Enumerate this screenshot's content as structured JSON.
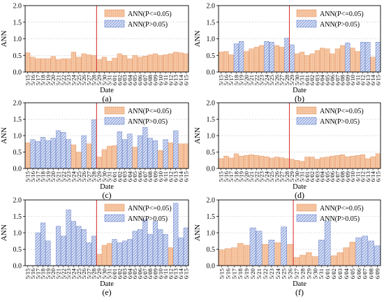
{
  "figure": {
    "colors": {
      "significant": "#f7c9a6",
      "significant_stroke": "#e08a55",
      "nonsignificant": "#cdd8f2",
      "nonsignificant_stroke": "#5570c0",
      "divider": "#d93a3a",
      "grid": "#bfbfbf"
    }
  },
  "chart_data": [
    {
      "type": "bar",
      "panel_label": "(a)",
      "xlabel": "Date",
      "ylabel": "ANN",
      "ylim": [
        0,
        2.0
      ],
      "yticks": [
        "0.0",
        "0.5",
        "1.0",
        "1.5",
        "2.0"
      ],
      "legend": [
        "ANN(P<=0.05)",
        "ANN(P>0.05)"
      ],
      "legend_position": "top-right",
      "divider_after": "5/28",
      "categories": [
        "5/15",
        "5/16",
        "5/17",
        "5/18",
        "5/19",
        "5/20",
        "5/21",
        "5/22",
        "5/23",
        "5/24",
        "5/25",
        "5/26",
        "5/27",
        "5/28",
        "5/29",
        "5/30",
        "5/31",
        "6/01",
        "6/02",
        "6/03",
        "6/04",
        "6/05",
        "6/06",
        "6/07",
        "6/08",
        "6/09",
        "6/10",
        "6/11",
        "6/12",
        "6/13",
        "6/14",
        "6/15"
      ],
      "values": [
        0.58,
        0.45,
        0.4,
        0.4,
        0.4,
        0.47,
        0.38,
        0.4,
        0.4,
        0.6,
        0.45,
        0.55,
        0.52,
        0.5,
        0.38,
        0.45,
        0.33,
        0.42,
        0.55,
        0.5,
        0.4,
        0.5,
        0.45,
        0.48,
        0.52,
        0.55,
        0.5,
        0.52,
        0.55,
        0.6,
        0.58,
        0.55
      ],
      "significant": [
        true,
        true,
        true,
        true,
        true,
        true,
        true,
        true,
        true,
        true,
        true,
        true,
        true,
        true,
        true,
        true,
        true,
        true,
        true,
        true,
        true,
        true,
        true,
        true,
        true,
        true,
        true,
        true,
        true,
        true,
        true,
        true
      ]
    },
    {
      "type": "bar",
      "panel_label": "(b)",
      "xlabel": "Date",
      "ylabel": "ANN",
      "ylim": [
        0,
        2.0
      ],
      "yticks": [
        "0.0",
        "0.5",
        "1.0",
        "1.5",
        "2.0"
      ],
      "legend": [
        "ANN(P<=0.05)",
        "ANN(P>0.05)"
      ],
      "legend_position": "top-right",
      "divider_after": "5/28",
      "categories": [
        "5/15",
        "5/16",
        "5/17",
        "5/18",
        "5/19",
        "5/20",
        "5/21",
        "5/22",
        "5/23",
        "5/24",
        "5/25",
        "5/26",
        "5/27",
        "5/28",
        "5/29",
        "5/30",
        "5/31",
        "6/01",
        "6/02",
        "6/03",
        "6/04",
        "6/05",
        "6/06",
        "6/07",
        "6/08",
        "6/09",
        "6/10",
        "6/11",
        "6/12",
        "6/13",
        "6/14",
        "6/15"
      ],
      "values": [
        0.6,
        0.62,
        0.52,
        0.85,
        0.92,
        0.62,
        0.7,
        0.75,
        0.8,
        0.92,
        0.9,
        0.8,
        0.75,
        1.02,
        0.82,
        0.55,
        0.6,
        0.5,
        0.55,
        0.65,
        0.72,
        0.7,
        0.55,
        0.7,
        0.8,
        0.88,
        0.72,
        0.62,
        0.9,
        0.9,
        0.45,
        0.9
      ],
      "significant": [
        true,
        true,
        true,
        false,
        false,
        true,
        true,
        true,
        true,
        false,
        false,
        true,
        true,
        false,
        false,
        true,
        true,
        true,
        true,
        true,
        true,
        true,
        true,
        true,
        true,
        false,
        true,
        true,
        false,
        false,
        true,
        false
      ]
    },
    {
      "type": "bar",
      "panel_label": "(c)",
      "xlabel": "Date",
      "ylabel": "ANN",
      "ylim": [
        0,
        2.0
      ],
      "yticks": [
        "0.0",
        "0.5",
        "1.0",
        "1.5",
        "2.0"
      ],
      "legend": [
        "ANN(P<=0.05)",
        "ANN(P>0.05)"
      ],
      "legend_position": "top-right",
      "divider_after": "5/28",
      "categories": [
        "5/15",
        "5/16",
        "5/17",
        "5/18",
        "5/19",
        "5/20",
        "5/21",
        "5/22",
        "5/23",
        "5/24",
        "5/25",
        "5/26",
        "5/27",
        "5/28",
        "5/29",
        "5/30",
        "5/31",
        "6/01",
        "6/02",
        "6/03",
        "6/04",
        "6/05",
        "6/06",
        "6/07",
        "6/08",
        "6/09",
        "6/10",
        "6/11",
        "6/12",
        "6/13",
        "6/14",
        "6/15"
      ],
      "values": [
        0.78,
        0.88,
        0.82,
        0.95,
        0.85,
        0.92,
        1.15,
        1.1,
        0.88,
        0.72,
        0.5,
        1.0,
        0.75,
        1.48,
        0.35,
        0.58,
        0.68,
        0.7,
        1.12,
        0.88,
        1.05,
        0.65,
        1.0,
        1.25,
        0.92,
        0.85,
        0.55,
        0.88,
        0.78,
        1.15,
        0.75,
        0.75
      ],
      "significant": [
        true,
        false,
        false,
        false,
        false,
        false,
        false,
        false,
        false,
        true,
        true,
        false,
        true,
        false,
        true,
        true,
        true,
        true,
        false,
        false,
        false,
        true,
        false,
        false,
        false,
        false,
        true,
        false,
        true,
        false,
        true,
        true
      ]
    },
    {
      "type": "bar",
      "panel_label": "(d)",
      "xlabel": "Date",
      "ylabel": "ANN",
      "ylim": [
        0,
        2.0
      ],
      "yticks": [
        "0.0",
        "0.5",
        "1.0",
        "1.5",
        "2.0"
      ],
      "legend": [
        "ANN(P<=0.05)",
        "ANN(P>0.05)"
      ],
      "legend_position": "top-right",
      "divider_after": "5/28",
      "categories": [
        "5/15",
        "5/16",
        "5/17",
        "5/18",
        "5/19",
        "5/20",
        "5/21",
        "5/22",
        "5/23",
        "5/24",
        "5/25",
        "5/26",
        "5/27",
        "5/28",
        "5/29",
        "5/30",
        "5/31",
        "6/01",
        "6/02",
        "6/03",
        "6/04",
        "6/05",
        "6/06",
        "6/07",
        "6/08",
        "6/09",
        "6/10",
        "6/11",
        "6/12",
        "6/13",
        "6/14",
        "6/15"
      ],
      "values": [
        0.3,
        0.38,
        0.32,
        0.45,
        0.38,
        0.4,
        0.42,
        0.4,
        0.38,
        0.36,
        0.32,
        0.35,
        0.33,
        0.3,
        0.28,
        0.25,
        0.22,
        0.35,
        0.35,
        0.28,
        0.33,
        0.35,
        0.38,
        0.4,
        0.42,
        0.36,
        0.38,
        0.4,
        0.42,
        0.3,
        0.36,
        0.45
      ],
      "significant": [
        true,
        true,
        true,
        true,
        true,
        true,
        true,
        true,
        true,
        true,
        true,
        true,
        true,
        true,
        true,
        true,
        true,
        true,
        true,
        true,
        true,
        true,
        true,
        true,
        true,
        true,
        true,
        true,
        true,
        true,
        true,
        true
      ]
    },
    {
      "type": "bar",
      "panel_label": "(e)",
      "xlabel": "Date",
      "ylabel": "ANN",
      "ylim": [
        0,
        2.0
      ],
      "yticks": [
        "0.0",
        "0.5",
        "1.0",
        "1.5",
        "2.0"
      ],
      "legend": [
        "ANN(P<=0.05)",
        "ANN(P>0.05)"
      ],
      "legend_position": "top-right",
      "divider_after": "5/28",
      "categories": [
        "5/15",
        "5/16",
        "5/17",
        "5/18",
        "5/19",
        "5/20",
        "5/21",
        "5/22",
        "5/23",
        "5/24",
        "5/25",
        "5/26",
        "5/27",
        "5/28",
        "5/29",
        "5/30",
        "5/31",
        "6/01",
        "6/02",
        "6/03",
        "6/04",
        "6/05",
        "6/06",
        "6/07",
        "6/08",
        "6/09",
        "6/10",
        "6/11",
        "6/12",
        "6/13",
        "6/14",
        "6/15"
      ],
      "values": [
        0.0,
        0.0,
        1.0,
        1.3,
        0.75,
        0.0,
        1.2,
        0.9,
        1.7,
        1.35,
        1.2,
        1.1,
        0.7,
        0.9,
        0.35,
        0.62,
        0.68,
        0.8,
        0.7,
        0.75,
        0.8,
        1.05,
        1.1,
        1.4,
        0.95,
        1.35,
        1.1,
        0.95,
        0.55,
        1.9,
        0.85,
        1.15
      ],
      "significant": [
        true,
        true,
        false,
        false,
        false,
        true,
        false,
        false,
        false,
        false,
        false,
        false,
        false,
        false,
        true,
        true,
        true,
        false,
        false,
        false,
        false,
        false,
        false,
        false,
        false,
        false,
        false,
        false,
        true,
        false,
        false,
        false
      ]
    },
    {
      "type": "bar",
      "panel_label": "(f)",
      "xlabel": "Date",
      "ylabel": "ANN",
      "ylim": [
        0,
        2.0
      ],
      "yticks": [
        "0.0",
        "0.5",
        "1.0",
        "1.5",
        "2.0"
      ],
      "legend": [
        "ANN(P<=0.05)",
        "ANN(P>0.05)"
      ],
      "legend_position": "top-right",
      "divider_after": "5/26",
      "categories": [
        "5/15",
        "5/16",
        "5/17",
        "5/18",
        "5/19",
        "5/20",
        "5/21",
        "5/22",
        "5/23",
        "5/24",
        "5/25",
        "5/26",
        "5/27",
        "5/28",
        "5/29",
        "5/30",
        "5/31",
        "6/01",
        "6/02",
        "6/03",
        "6/04",
        "6/05",
        "6/06",
        "6/07",
        "6/08",
        "6/09"
      ],
      "values": [
        0.48,
        0.52,
        0.55,
        0.68,
        0.62,
        1.15,
        1.05,
        0.65,
        0.78,
        0.7,
        1.18,
        0.65,
        0.25,
        0.32,
        0.4,
        0.28,
        0.78,
        1.35,
        0.3,
        0.4,
        0.55,
        0.72,
        0.85,
        0.9,
        0.75,
        0.6
      ],
      "significant": [
        true,
        true,
        true,
        true,
        true,
        false,
        false,
        true,
        false,
        true,
        false,
        true,
        true,
        true,
        true,
        true,
        false,
        false,
        true,
        true,
        true,
        true,
        false,
        false,
        false,
        false
      ]
    }
  ]
}
